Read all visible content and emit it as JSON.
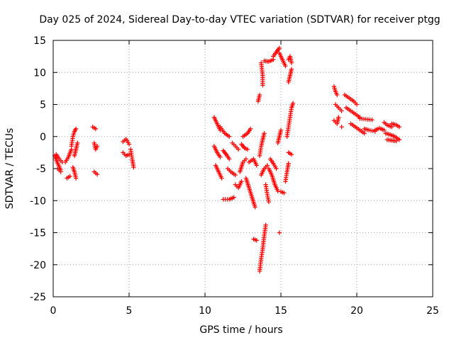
{
  "chart_data": {
    "type": "scatter",
    "title": "Day 025 of 2024, Sidereal Day-to-day VTEC variation (SDTVAR) for receiver ptgg",
    "xlabel": "GPS time / hours",
    "ylabel": "SDTVAR / TECUs",
    "xlim": [
      0,
      25
    ],
    "ylim": [
      -25,
      15
    ],
    "xticks": [
      "0",
      "5",
      "10",
      "15",
      "20",
      "25"
    ],
    "yticks": [
      "-25",
      "-20",
      "-15",
      "-10",
      "-5",
      "0",
      "5",
      "10",
      "15"
    ],
    "grid": true,
    "marker": "plus",
    "color": "#ff0000",
    "tracks": [
      [
        [
          0.1,
          -3.0
        ],
        [
          0.3,
          -4.2
        ],
        [
          0.5,
          -5.2
        ]
      ],
      [
        [
          0.2,
          -2.8
        ],
        [
          0.4,
          -3.5
        ],
        [
          0.6,
          -4.0
        ]
      ],
      [
        [
          0.3,
          -5.0
        ],
        [
          0.5,
          -5.5
        ]
      ],
      [
        [
          0.8,
          -4.0
        ],
        [
          1.0,
          -3.2
        ],
        [
          1.2,
          -2.0
        ]
      ],
      [
        [
          0.9,
          -6.5
        ],
        [
          1.1,
          -6.2
        ]
      ],
      [
        [
          1.2,
          -1.5
        ],
        [
          1.3,
          0.0
        ],
        [
          1.4,
          0.8
        ],
        [
          1.5,
          1.2
        ]
      ],
      [
        [
          1.3,
          -4.8
        ],
        [
          1.4,
          -5.5
        ],
        [
          1.5,
          -6.5
        ]
      ],
      [
        [
          1.4,
          -3.0
        ],
        [
          1.5,
          -2.0
        ],
        [
          1.6,
          -1.0
        ]
      ],
      [
        [
          2.6,
          1.5
        ],
        [
          2.8,
          1.2
        ]
      ],
      [
        [
          2.7,
          -1.0
        ],
        [
          2.8,
          -2.0
        ],
        [
          2.9,
          -1.5
        ]
      ],
      [
        [
          2.7,
          -5.5
        ],
        [
          2.9,
          -5.9
        ]
      ],
      [
        [
          4.6,
          -0.8
        ],
        [
          4.8,
          -0.4
        ],
        [
          5.0,
          -1.2
        ]
      ],
      [
        [
          4.6,
          -2.5
        ],
        [
          4.8,
          -3.0
        ],
        [
          5.0,
          -2.8
        ]
      ],
      [
        [
          5.1,
          -2.0
        ],
        [
          5.2,
          -3.5
        ],
        [
          5.3,
          -4.8
        ]
      ],
      [
        [
          10.6,
          3.0
        ],
        [
          10.8,
          2.0
        ],
        [
          11.0,
          1.0
        ]
      ],
      [
        [
          10.6,
          -1.5
        ],
        [
          10.8,
          -2.5
        ],
        [
          11.0,
          -3.2
        ]
      ],
      [
        [
          10.7,
          -4.5
        ],
        [
          10.9,
          -5.5
        ],
        [
          11.1,
          -6.5
        ]
      ],
      [
        [
          11.0,
          1.5
        ],
        [
          11.3,
          0.5
        ],
        [
          11.6,
          0.0
        ]
      ],
      [
        [
          11.2,
          -2.2
        ],
        [
          11.4,
          -2.8
        ],
        [
          11.6,
          -3.5
        ]
      ],
      [
        [
          11.2,
          -9.8
        ],
        [
          11.6,
          -9.8
        ],
        [
          11.9,
          -9.5
        ]
      ],
      [
        [
          11.5,
          -5.0
        ],
        [
          11.7,
          -5.5
        ],
        [
          12.0,
          -6.0
        ]
      ],
      [
        [
          11.8,
          -1.0
        ],
        [
          12.0,
          -1.5
        ],
        [
          12.2,
          -2.0
        ]
      ],
      [
        [
          12.0,
          -7.5
        ],
        [
          12.2,
          -8.0
        ],
        [
          12.4,
          -7.0
        ]
      ],
      [
        [
          12.3,
          -5.5
        ],
        [
          12.5,
          -4.0
        ],
        [
          12.7,
          -3.5
        ]
      ],
      [
        [
          12.4,
          -1.2
        ],
        [
          12.6,
          -1.8
        ],
        [
          12.8,
          -2.0
        ]
      ],
      [
        [
          12.5,
          0.0
        ],
        [
          12.8,
          0.5
        ],
        [
          13.0,
          1.2
        ]
      ],
      [
        [
          12.7,
          -6.5
        ],
        [
          12.9,
          -8.0
        ],
        [
          13.1,
          -9.5
        ],
        [
          13.3,
          -11.0
        ]
      ],
      [
        [
          12.9,
          -4.0
        ],
        [
          13.2,
          -3.5
        ],
        [
          13.4,
          -4.5
        ]
      ],
      [
        [
          13.2,
          -16.0
        ],
        [
          13.4,
          -16.2
        ]
      ],
      [
        [
          13.5,
          5.5
        ],
        [
          13.6,
          6.5
        ]
      ],
      [
        [
          13.6,
          -21.0
        ],
        [
          13.7,
          -19.0
        ],
        [
          13.8,
          -17.5
        ],
        [
          13.9,
          -15.5
        ],
        [
          14.0,
          -13.8
        ]
      ],
      [
        [
          13.6,
          -3.0
        ],
        [
          13.7,
          -1.5
        ],
        [
          13.8,
          -0.5
        ],
        [
          13.9,
          0.5
        ]
      ],
      [
        [
          13.7,
          -6.0
        ],
        [
          13.9,
          -5.0
        ],
        [
          14.1,
          -4.5
        ]
      ],
      [
        [
          13.7,
          11.5
        ],
        [
          13.8,
          9.5
        ],
        [
          13.8,
          8.0
        ]
      ],
      [
        [
          13.9,
          11.8
        ],
        [
          14.2,
          11.7
        ],
        [
          14.5,
          12.0
        ]
      ],
      [
        [
          14.0,
          -7.5
        ],
        [
          14.1,
          -9.0
        ],
        [
          14.2,
          -10.2
        ]
      ],
      [
        [
          14.2,
          -5.0
        ],
        [
          14.4,
          -6.0
        ],
        [
          14.6,
          -7.5
        ],
        [
          14.8,
          -8.5
        ]
      ],
      [
        [
          14.3,
          -3.5
        ],
        [
          14.5,
          -4.2
        ],
        [
          14.7,
          -5.0
        ]
      ],
      [
        [
          14.5,
          12.5
        ],
        [
          14.7,
          13.2
        ],
        [
          14.9,
          13.8
        ]
      ],
      [
        [
          14.8,
          -1.0
        ],
        [
          14.9,
          0.0
        ],
        [
          15.0,
          1.0
        ]
      ],
      [
        [
          14.9,
          -15.0
        ]
      ],
      [
        [
          14.9,
          13.0
        ],
        [
          15.1,
          12.0
        ],
        [
          15.3,
          11.0
        ]
      ],
      [
        [
          15.0,
          -8.6
        ],
        [
          15.2,
          -8.8
        ]
      ],
      [
        [
          15.3,
          -7.0
        ],
        [
          15.4,
          -5.5
        ],
        [
          15.5,
          -4.2
        ]
      ],
      [
        [
          15.4,
          0.0
        ],
        [
          15.5,
          1.5
        ],
        [
          15.6,
          3.0
        ],
        [
          15.7,
          4.5
        ],
        [
          15.8,
          5.2
        ]
      ],
      [
        [
          15.5,
          -2.5
        ],
        [
          15.7,
          -2.8
        ]
      ],
      [
        [
          15.5,
          8.5
        ],
        [
          15.6,
          9.5
        ],
        [
          15.7,
          10.5
        ]
      ],
      [
        [
          15.5,
          12.0
        ],
        [
          15.6,
          12.5
        ],
        [
          15.7,
          11.5
        ]
      ],
      [
        [
          18.5,
          7.8
        ],
        [
          18.6,
          7.0
        ],
        [
          18.7,
          6.5
        ]
      ],
      [
        [
          18.5,
          2.5
        ],
        [
          18.7,
          2.0
        ],
        [
          18.8,
          3.0
        ]
      ],
      [
        [
          18.6,
          5.0
        ],
        [
          18.8,
          4.5
        ],
        [
          19.0,
          4.0
        ]
      ],
      [
        [
          19.0,
          1.5
        ]
      ],
      [
        [
          19.2,
          6.5
        ],
        [
          19.5,
          6.0
        ],
        [
          19.8,
          5.5
        ],
        [
          20.0,
          5.0
        ]
      ],
      [
        [
          19.3,
          4.5
        ],
        [
          19.6,
          4.0
        ],
        [
          19.9,
          3.5
        ],
        [
          20.2,
          3.0
        ]
      ],
      [
        [
          19.6,
          2.0
        ],
        [
          19.9,
          1.5
        ],
        [
          20.2,
          1.0
        ],
        [
          20.5,
          0.5
        ]
      ],
      [
        [
          20.2,
          2.8
        ],
        [
          20.6,
          2.7
        ],
        [
          21.0,
          2.6
        ]
      ],
      [
        [
          20.5,
          1.2
        ],
        [
          20.8,
          1.0
        ],
        [
          21.2,
          0.8
        ]
      ],
      [
        [
          21.2,
          1.0
        ],
        [
          21.5,
          1.3
        ],
        [
          21.8,
          1.0
        ]
      ],
      [
        [
          21.8,
          2.2
        ],
        [
          22.0,
          1.8
        ],
        [
          22.3,
          1.5
        ]
      ],
      [
        [
          21.9,
          0.5
        ],
        [
          22.2,
          0.3
        ],
        [
          22.5,
          0.0
        ],
        [
          22.8,
          -0.5
        ]
      ],
      [
        [
          22.0,
          -0.5
        ],
        [
          22.3,
          -0.6
        ],
        [
          22.6,
          -0.7
        ]
      ],
      [
        [
          22.3,
          2.0
        ],
        [
          22.6,
          1.8
        ],
        [
          22.8,
          1.5
        ]
      ]
    ]
  }
}
